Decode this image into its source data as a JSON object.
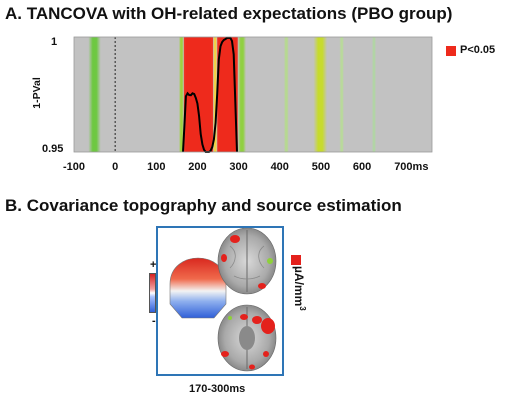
{
  "sectionA": {
    "title": "A. TANCOVA with OH-related expectations (PBO group)"
  },
  "sectionB": {
    "title": "B. Covariance topography and source estimation",
    "colorbar_plus": "+",
    "colorbar_minus": "-",
    "unit_base": "µA/mm",
    "unit_sup": "3",
    "time_window": "170-300ms",
    "colors": {
      "frame": "#2e75b6",
      "positive": "#e8281e",
      "negative": "#2f5fd8",
      "brain_active": "#e4211c",
      "brain_secondary": "#8ed13a"
    }
  },
  "chart_data": {
    "type": "area",
    "title": "A. TANCOVA with OH-related expectations (PBO group)",
    "ylabel": "1-PVal",
    "xlabel": "",
    "xunit": "ms",
    "ylim": [
      0.95,
      1
    ],
    "xlim": [
      -100,
      770
    ],
    "yticks": [
      "1",
      "0.95"
    ],
    "xticks": [
      {
        "value": -100,
        "label": "-100"
      },
      {
        "value": 0,
        "label": "0"
      },
      {
        "value": 100,
        "label": "100"
      },
      {
        "value": 200,
        "label": "200"
      },
      {
        "value": 300,
        "label": "300"
      },
      {
        "value": 400,
        "label": "400"
      },
      {
        "value": 500,
        "label": "500"
      },
      {
        "value": 600,
        "label": "600"
      },
      {
        "value": 700,
        "label": "700ms"
      }
    ],
    "stimulus_onset": 0,
    "legend": {
      "label": "P<0.05",
      "color": "#ee2a1c",
      "placement": "right"
    },
    "significant_window": [
      165,
      240
    ],
    "color_bands": [
      {
        "start": -65,
        "end": -35,
        "color": "#69c83b"
      },
      {
        "start": 155,
        "end": 167,
        "color": "#9bd23a"
      },
      {
        "start": 167,
        "end": 238,
        "color": "#ee2a1c"
      },
      {
        "start": 238,
        "end": 248,
        "color": "#f6d33a"
      },
      {
        "start": 248,
        "end": 298,
        "color": "#ee2a1c"
      },
      {
        "start": 298,
        "end": 318,
        "color": "#8ed13a"
      },
      {
        "start": 410,
        "end": 422,
        "color": "#b5da8e"
      },
      {
        "start": 482,
        "end": 515,
        "color": "#c7dc25"
      },
      {
        "start": 545,
        "end": 556,
        "color": "#b8db98"
      },
      {
        "start": 624,
        "end": 634,
        "color": "#b0d6a3"
      }
    ],
    "series": [
      {
        "x": [
          165,
          168,
          172,
          176,
          180,
          184,
          188,
          192,
          196,
          200,
          204,
          208,
          212,
          216,
          220,
          224,
          228,
          232,
          236,
          240,
          244,
          248,
          252,
          256,
          260,
          264,
          268,
          272,
          276,
          280,
          284,
          288,
          292,
          296
        ],
        "values": [
          0.95,
          0.9605,
          0.9742,
          0.9755,
          0.9748,
          0.9747,
          0.9755,
          0.9752,
          0.9735,
          0.9711,
          0.9655,
          0.9578,
          0.9533,
          0.951,
          0.95,
          0.95,
          0.95,
          0.9505,
          0.9522,
          0.9555,
          0.9627,
          0.9753,
          0.9902,
          0.996,
          0.9978,
          0.9987,
          0.9991,
          0.9996,
          0.9996,
          0.9996,
          0.9982,
          0.9925,
          0.9719,
          0.95
        ]
      }
    ]
  }
}
